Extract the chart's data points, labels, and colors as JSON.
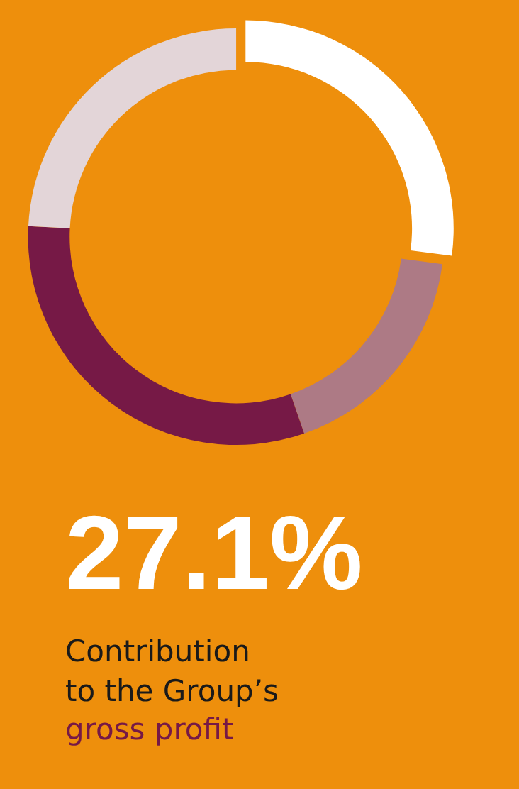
{
  "chart_data": {
    "type": "donut",
    "title": "27.1%",
    "categories": [
      null,
      null,
      null,
      null
    ],
    "values": [
      27.1,
      17.6,
      31.1,
      24.2
    ],
    "colors": [
      "#ffffff",
      "#ad7a85",
      "#761946",
      "#e3d5d8"
    ],
    "annotations": [
      "Contribution",
      "to the Group’s",
      "gross profit"
    ],
    "legend": false
  }
}
